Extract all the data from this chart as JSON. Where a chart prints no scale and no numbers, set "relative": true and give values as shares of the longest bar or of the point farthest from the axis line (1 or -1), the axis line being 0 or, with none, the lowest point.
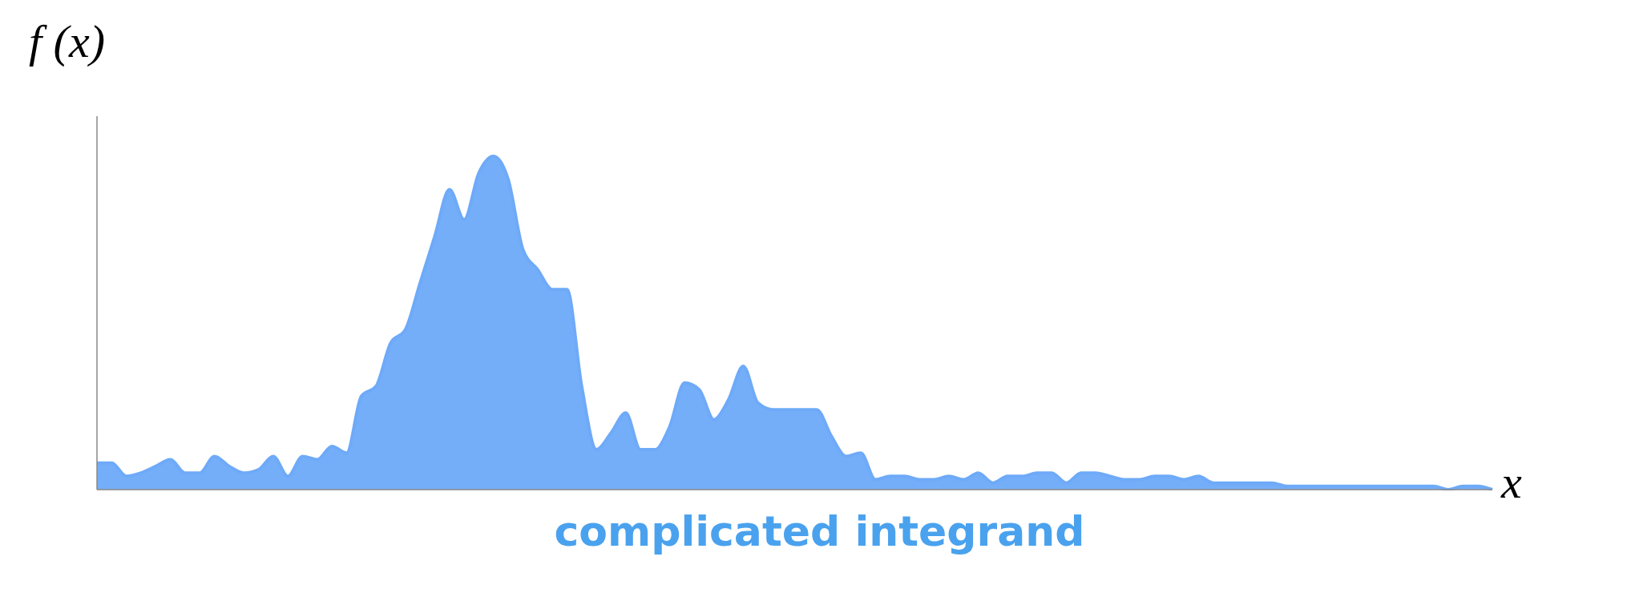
{
  "chart_data": {
    "type": "area",
    "title": "complicated integrand",
    "xlabel": "x",
    "ylabel": "f (x)",
    "relative": true,
    "categories": [
      null,
      null,
      null,
      null,
      null,
      null,
      null,
      null,
      null,
      null,
      null,
      null,
      null,
      null,
      null,
      null,
      null,
      null,
      null,
      null,
      null,
      null,
      null,
      null,
      null,
      null,
      null,
      null,
      null,
      null,
      null,
      null,
      null,
      null,
      null,
      null,
      null,
      null,
      null,
      null,
      null,
      null,
      null,
      null,
      null,
      null,
      null,
      null,
      null,
      null,
      null,
      null,
      null,
      null,
      null,
      null,
      null,
      null,
      null,
      null,
      null,
      null,
      null,
      null,
      null,
      null,
      null,
      null,
      null,
      null,
      null,
      null,
      null,
      null,
      null,
      null,
      null,
      null,
      null,
      null,
      null,
      null,
      null,
      null,
      null,
      null,
      null,
      null,
      null,
      null,
      null,
      null,
      null,
      null,
      null,
      null
    ],
    "series": [
      {
        "color": "#6eaaf8",
        "values": [
          0.08,
          0.08,
          0.04,
          0.05,
          0.07,
          0.09,
          0.05,
          0.05,
          0.1,
          0.07,
          0.05,
          0.06,
          0.1,
          0.04,
          0.1,
          0.09,
          0.13,
          0.11,
          0.28,
          0.31,
          0.44,
          0.48,
          0.62,
          0.76,
          0.9,
          0.81,
          0.95,
          1.0,
          0.93,
          0.72,
          0.66,
          0.6,
          0.6,
          0.31,
          0.12,
          0.17,
          0.23,
          0.12,
          0.12,
          0.19,
          0.32,
          0.3,
          0.21,
          0.27,
          0.37,
          0.26,
          0.24,
          0.24,
          0.24,
          0.24,
          0.16,
          0.1,
          0.11,
          0.03,
          0.04,
          0.04,
          0.03,
          0.03,
          0.04,
          0.03,
          0.05,
          0.02,
          0.04,
          0.04,
          0.05,
          0.05,
          0.02,
          0.05,
          0.05,
          0.04,
          0.03,
          0.03,
          0.04,
          0.04,
          0.03,
          0.04,
          0.02,
          0.02,
          0.02,
          0.02,
          0.02,
          0.01,
          0.01,
          0.01,
          0.01,
          0.01,
          0.01,
          0.01,
          0.01,
          0.01,
          0.01,
          0.01,
          0.0,
          0.01,
          0.01,
          0.0
        ]
      }
    ],
    "grid": false,
    "legend": false
  }
}
